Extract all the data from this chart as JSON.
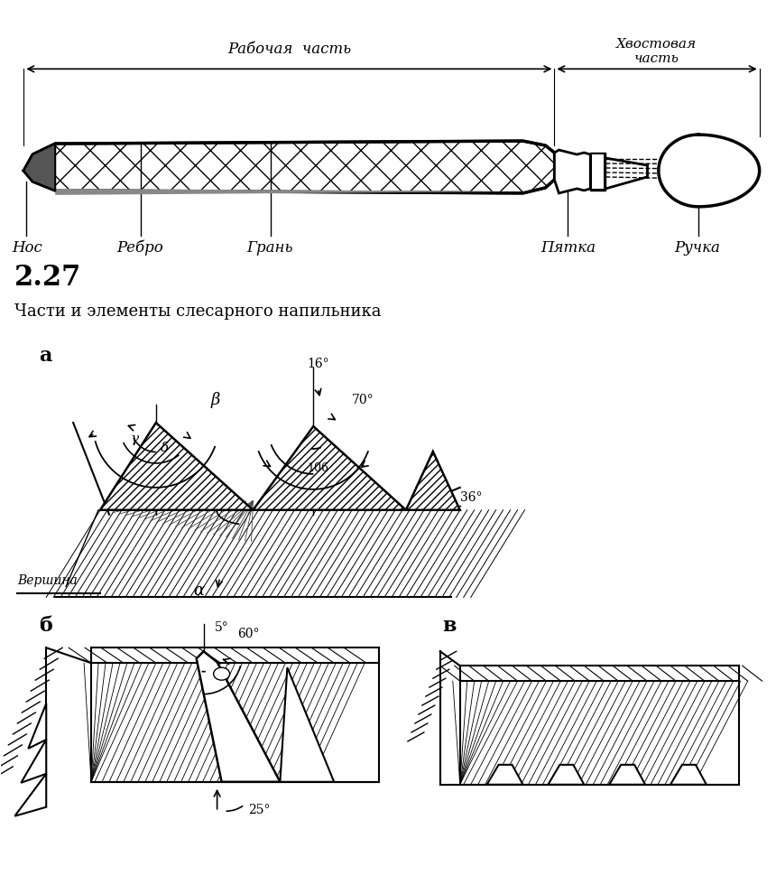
{
  "fig_number": "2.27",
  "caption": "Части и элементы слесарного напильника",
  "label_nos": "Нос",
  "label_rebro": "Ребро",
  "label_gran": "Грань",
  "label_pyatka": "Пятка",
  "label_ruchka": "Ручка",
  "label_rabochaya": "Рабочая  часть",
  "label_hvostovaya1": "Хвостовая",
  "label_hvostovaya2": "часть",
  "label_vershina": "Вершина",
  "label_alpha": "α",
  "label_beta": "β",
  "label_gamma": "γ",
  "label_delta": "δ",
  "label_a": "а",
  "label_b": "б",
  "label_v": "в",
  "angle_16": "16°",
  "angle_70": "70°",
  "angle_106": "106",
  "angle_36": "36°",
  "angle_5": "5°",
  "angle_60": "60°",
  "angle_25": "25°",
  "bg_color": "#ffffff",
  "line_color": "#000000"
}
